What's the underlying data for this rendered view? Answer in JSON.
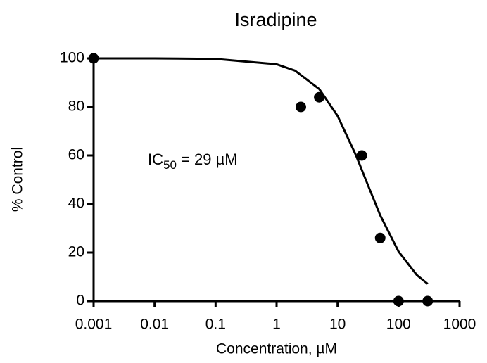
{
  "chart_data": {
    "type": "scatter",
    "title": "Isradipine",
    "x_label": "Concentration,  µM",
    "y_label": "% Control",
    "x": [
      0.001,
      2.5,
      5,
      25,
      50,
      100,
      300
    ],
    "values": [
      100,
      80,
      84,
      60,
      26,
      0,
      0
    ],
    "color": "#000000",
    "fit": {
      "x": [
        0.001,
        0.01,
        0.1,
        1,
        2,
        5,
        10,
        20,
        29,
        50,
        100,
        200,
        300
      ],
      "values": [
        100,
        100,
        99.8,
        97.6,
        95,
        87.4,
        76.3,
        60.1,
        50,
        35.4,
        20.4,
        10.7,
        7.1
      ]
    },
    "annotation": {
      "main": "IC",
      "subscript": "50",
      "suffix": " = 29 µM"
    },
    "xscale": "log",
    "xlim": [
      0.001,
      1000
    ],
    "xticks": [
      0.001,
      0.01,
      0.1,
      1,
      10,
      100,
      1000
    ],
    "ylim": [
      0,
      100
    ],
    "yticks": [
      0,
      20,
      40,
      60,
      80,
      100
    ]
  }
}
